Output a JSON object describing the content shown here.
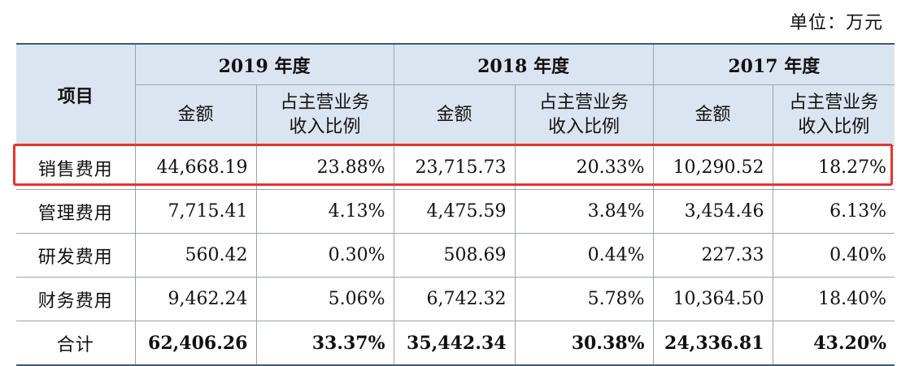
{
  "unit_label": "单位：万元",
  "header": {
    "item": "项目",
    "years": [
      "2019 年度",
      "2018 年度",
      "2017 年度"
    ],
    "amount": "金额",
    "ratio_line1": "占主营业务",
    "ratio_line2": "收入比例"
  },
  "rows": [
    {
      "label": "销售费用",
      "cells": [
        "44,668.19",
        "23.88%",
        "23,715.73",
        "20.33%",
        "10,290.52",
        "18.27%"
      ]
    },
    {
      "label": "管理费用",
      "cells": [
        "7,715.41",
        "4.13%",
        "4,475.59",
        "3.84%",
        "3,454.46",
        "6.13%"
      ]
    },
    {
      "label": "研发费用",
      "cells": [
        "560.42",
        "0.30%",
        "508.69",
        "0.44%",
        "227.33",
        "0.40%"
      ]
    },
    {
      "label": "财务费用",
      "cells": [
        "9,462.24",
        "5.06%",
        "6,742.32",
        "5.78%",
        "10,364.50",
        "18.40%"
      ]
    },
    {
      "label": "合计",
      "cells": [
        "62,406.26",
        "33.37%",
        "35,442.34",
        "30.38%",
        "24,336.81",
        "43.20%"
      ]
    }
  ],
  "highlight_color": "#e8322d",
  "header_bg": "#dbe5f1"
}
